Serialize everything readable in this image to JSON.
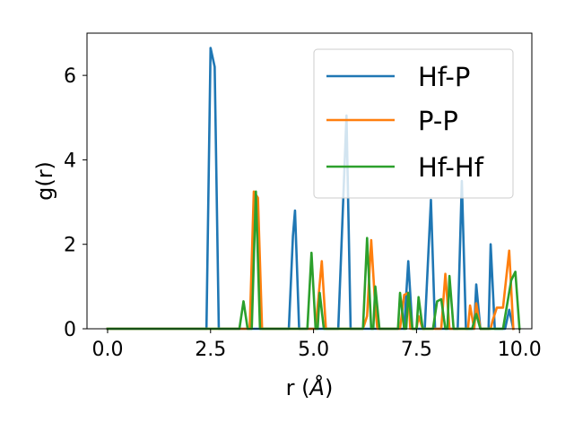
{
  "chart_data": {
    "type": "line",
    "xlabel_main": "r (",
    "xlabel_unit": "Å",
    "xlabel_close": ")",
    "ylabel": "g(r)",
    "xlim": [
      -0.5,
      10.3
    ],
    "ylim": [
      0,
      7.0
    ],
    "xticks": [
      0.0,
      2.5,
      5.0,
      7.5,
      10.0
    ],
    "xtick_labels": [
      "0.0",
      "2.5",
      "5.0",
      "7.5",
      "10.0"
    ],
    "yticks": [
      0,
      2,
      4,
      6
    ],
    "ytick_labels": [
      "0",
      "2",
      "4",
      "6"
    ],
    "grid": false,
    "legend_position": "top-right",
    "series": [
      {
        "name": "Hf-P",
        "color": "#1f77b4",
        "points": [
          [
            0.0,
            0
          ],
          [
            2.4,
            0
          ],
          [
            2.5,
            6.65
          ],
          [
            2.6,
            6.2
          ],
          [
            2.7,
            0
          ],
          [
            4.4,
            0
          ],
          [
            4.5,
            2.2
          ],
          [
            4.55,
            2.8
          ],
          [
            4.65,
            0
          ],
          [
            5.6,
            0
          ],
          [
            5.8,
            5.05
          ],
          [
            5.9,
            0
          ],
          [
            7.2,
            0
          ],
          [
            7.3,
            1.6
          ],
          [
            7.4,
            0
          ],
          [
            7.7,
            0
          ],
          [
            7.85,
            3.05
          ],
          [
            7.95,
            0
          ],
          [
            8.5,
            0
          ],
          [
            8.6,
            3.5
          ],
          [
            8.7,
            0
          ],
          [
            8.9,
            0
          ],
          [
            8.95,
            1.05
          ],
          [
            9.05,
            0
          ],
          [
            9.25,
            0
          ],
          [
            9.3,
            2.0
          ],
          [
            9.4,
            0
          ],
          [
            9.65,
            0
          ],
          [
            9.75,
            0.45
          ],
          [
            9.85,
            0
          ]
        ]
      },
      {
        "name": "P-P",
        "color": "#ff7f0e",
        "points": [
          [
            0.0,
            0
          ],
          [
            3.45,
            0
          ],
          [
            3.55,
            3.25
          ],
          [
            3.65,
            3.1
          ],
          [
            3.75,
            0
          ],
          [
            5.05,
            0
          ],
          [
            5.2,
            1.6
          ],
          [
            5.3,
            0
          ],
          [
            6.2,
            0
          ],
          [
            6.3,
            0.3
          ],
          [
            6.4,
            2.1
          ],
          [
            6.5,
            0.5
          ],
          [
            6.55,
            0
          ],
          [
            7.1,
            0
          ],
          [
            7.2,
            0.8
          ],
          [
            7.3,
            0.85
          ],
          [
            7.35,
            0
          ],
          [
            7.5,
            0
          ],
          [
            7.55,
            0.3
          ],
          [
            7.65,
            0
          ],
          [
            8.1,
            0
          ],
          [
            8.2,
            1.3
          ],
          [
            8.3,
            0
          ],
          [
            8.75,
            0
          ],
          [
            8.8,
            0.55
          ],
          [
            8.9,
            0
          ],
          [
            8.95,
            0.6
          ],
          [
            9.05,
            0
          ],
          [
            9.3,
            0
          ],
          [
            9.35,
            0.2
          ],
          [
            9.45,
            0.5
          ],
          [
            9.6,
            0.5
          ],
          [
            9.75,
            1.85
          ],
          [
            9.85,
            0
          ]
        ]
      },
      {
        "name": "Hf-Hf",
        "color": "#2ca02c",
        "points": [
          [
            0.0,
            0
          ],
          [
            3.2,
            0
          ],
          [
            3.3,
            0.65
          ],
          [
            3.4,
            0
          ],
          [
            3.5,
            0
          ],
          [
            3.6,
            3.25
          ],
          [
            3.7,
            0
          ],
          [
            4.85,
            0
          ],
          [
            4.95,
            1.8
          ],
          [
            5.05,
            0
          ],
          [
            5.1,
            0
          ],
          [
            5.15,
            0.85
          ],
          [
            5.25,
            0
          ],
          [
            6.2,
            0
          ],
          [
            6.3,
            2.15
          ],
          [
            6.4,
            0
          ],
          [
            6.45,
            0
          ],
          [
            6.5,
            1.0
          ],
          [
            6.6,
            0
          ],
          [
            7.05,
            0
          ],
          [
            7.1,
            0.85
          ],
          [
            7.2,
            0
          ],
          [
            7.25,
            0
          ],
          [
            7.3,
            0.85
          ],
          [
            7.4,
            0
          ],
          [
            7.5,
            0
          ],
          [
            7.55,
            0.75
          ],
          [
            7.65,
            0
          ],
          [
            7.9,
            0
          ],
          [
            8.0,
            0.65
          ],
          [
            8.1,
            0.7
          ],
          [
            8.2,
            0
          ],
          [
            8.25,
            0
          ],
          [
            8.3,
            1.25
          ],
          [
            8.4,
            0
          ],
          [
            8.85,
            0
          ],
          [
            8.95,
            0.35
          ],
          [
            9.05,
            0
          ],
          [
            9.6,
            0
          ],
          [
            9.8,
            1.15
          ],
          [
            9.9,
            1.35
          ],
          [
            10.0,
            0
          ]
        ]
      }
    ]
  }
}
